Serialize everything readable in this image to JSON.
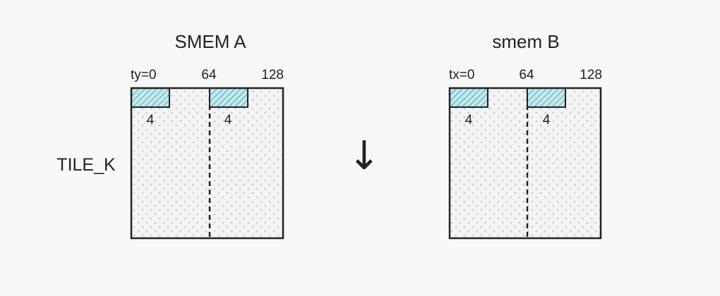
{
  "panel_a": {
    "title": "SMEM A",
    "tick_start": "ty=0",
    "tick_mid": "64",
    "tick_end": "128",
    "block1_width": "4",
    "block2_width": "4",
    "side_label": "TILE_K"
  },
  "panel_b": {
    "title": "smem B",
    "tick_start": "tx=0",
    "tick_mid": "64",
    "tick_end": "128",
    "block1_width": "4",
    "block2_width": "4"
  },
  "arrow": "↓",
  "colors": {
    "background": "#f8f8f8",
    "box_fill": "#f4f4f4",
    "dot": "#c8c8c8",
    "block_fill": "#bfeaf0",
    "hatch": "#2a6f80",
    "stroke": "#222222"
  }
}
